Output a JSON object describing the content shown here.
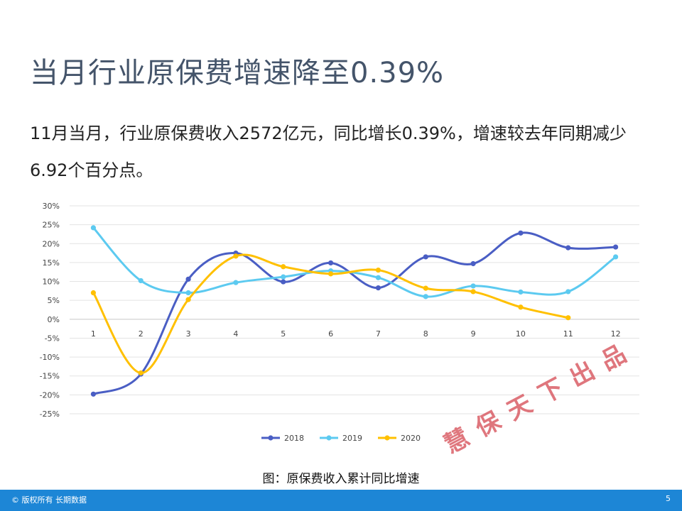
{
  "slide": {
    "title": "当月行业原保费增速降至0.39%",
    "body": "11月当月，行业原保费收入2572亿元，同比增长0.39%，增速较去年同期减少6.92个百分点。",
    "caption": "图：原保费收入累计同比增速",
    "watermark": "慧保天下出品",
    "footer_left": "© 版权所有 长期数据",
    "page_number": "5"
  },
  "chart_data": {
    "type": "line",
    "smooth": true,
    "title": "",
    "xlabel": "",
    "ylabel": "",
    "categories": [
      "1",
      "2",
      "3",
      "4",
      "5",
      "6",
      "7",
      "8",
      "9",
      "10",
      "11",
      "12"
    ],
    "ylim": [
      -25,
      30
    ],
    "yticks": [
      30,
      25,
      20,
      15,
      10,
      5,
      0,
      -5,
      -10,
      -15,
      -20,
      -25
    ],
    "ytick_labels": [
      "30%",
      "25%",
      "20%",
      "15%",
      "10%",
      "5%",
      "0%",
      "-5%",
      "-10%",
      "-15%",
      "-20%",
      "-25%"
    ],
    "grid": true,
    "legend_position": "bottom",
    "series": [
      {
        "name": "2018",
        "color": "#4a5ec4",
        "values": [
          -19.8,
          -14.5,
          10.6,
          17.5,
          9.9,
          14.9,
          8.3,
          16.5,
          14.7,
          22.8,
          18.9,
          19.1
        ]
      },
      {
        "name": "2019",
        "color": "#5ccaf0",
        "values": [
          24.2,
          10.2,
          7.0,
          9.7,
          11.2,
          12.8,
          11.0,
          6.0,
          8.8,
          7.2,
          7.3,
          16.5
        ]
      },
      {
        "name": "2020",
        "color": "#ffc000",
        "values": [
          7.0,
          -14.2,
          5.2,
          16.7,
          13.9,
          12.0,
          13.0,
          8.2,
          7.3,
          3.2,
          0.4,
          null
        ]
      }
    ]
  }
}
